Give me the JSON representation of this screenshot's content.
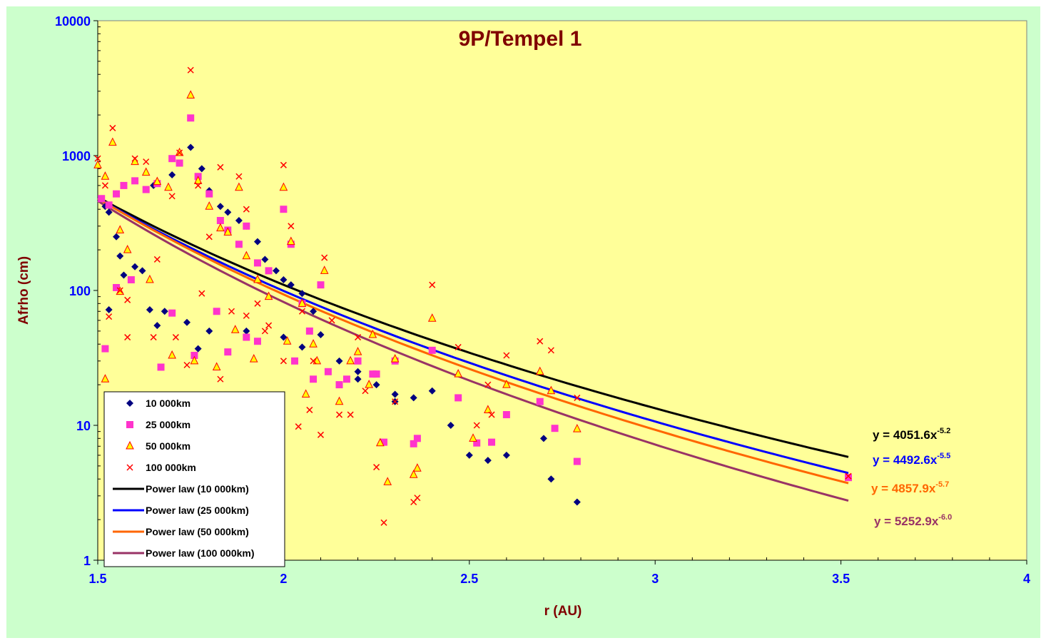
{
  "chart_data": {
    "type": "scatter",
    "title": "9P/Tempel 1",
    "xlabel": "r (AU)",
    "ylabel": "Afrho (cm)",
    "xlim": [
      1.5,
      4
    ],
    "ylim": [
      1,
      10000
    ],
    "yscale": "log",
    "xticks": [
      1.5,
      2,
      2.5,
      3,
      3.5,
      4
    ],
    "xtick_labels": [
      "1.5",
      "2",
      "2.5",
      "3",
      "3.5",
      "4"
    ],
    "yticks": [
      1,
      10,
      100,
      1000,
      10000
    ],
    "ytick_labels": [
      "1",
      "10",
      "100",
      "1000",
      "10000"
    ],
    "grid": false,
    "legend_position": "bottom-left",
    "colors": {
      "plot_bg": "#ffff99",
      "figure_bg": "#ccffcc",
      "title": "#800000",
      "axis_label": "#800000",
      "tick_label": "#0000ff"
    },
    "series": [
      {
        "name": "10 000km",
        "marker": "diamond",
        "color": "#000080",
        "points": [
          [
            1.52,
            420
          ],
          [
            1.53,
            380
          ],
          [
            1.55,
            250
          ],
          [
            1.56,
            180
          ],
          [
            1.57,
            130
          ],
          [
            1.6,
            150
          ],
          [
            1.62,
            140
          ],
          [
            1.65,
            600
          ],
          [
            1.7,
            720
          ],
          [
            1.72,
            880
          ],
          [
            1.75,
            1150
          ],
          [
            1.78,
            800
          ],
          [
            1.8,
            550
          ],
          [
            1.83,
            420
          ],
          [
            1.85,
            380
          ],
          [
            1.88,
            330
          ],
          [
            1.9,
            300
          ],
          [
            1.93,
            230
          ],
          [
            1.95,
            170
          ],
          [
            1.98,
            140
          ],
          [
            2.0,
            120
          ],
          [
            2.02,
            110
          ],
          [
            2.05,
            95
          ],
          [
            2.08,
            70
          ],
          [
            2.1,
            47
          ],
          [
            2.15,
            30
          ],
          [
            2.2,
            22
          ],
          [
            2.25,
            20
          ],
          [
            2.3,
            17
          ],
          [
            2.35,
            16
          ],
          [
            2.4,
            18
          ],
          [
            2.45,
            10
          ],
          [
            2.5,
            6
          ],
          [
            2.55,
            5.5
          ],
          [
            2.6,
            6
          ],
          [
            2.7,
            8
          ],
          [
            2.72,
            4
          ],
          [
            2.79,
            2.7
          ],
          [
            1.53,
            72
          ],
          [
            1.66,
            55
          ],
          [
            1.74,
            58
          ],
          [
            1.77,
            37
          ],
          [
            1.8,
            50
          ],
          [
            1.9,
            50
          ],
          [
            2.0,
            45
          ],
          [
            2.05,
            38
          ],
          [
            1.64,
            72
          ],
          [
            1.68,
            70
          ],
          [
            2.2,
            25
          ],
          [
            2.3,
            15
          ]
        ]
      },
      {
        "name": "25 000km",
        "marker": "square",
        "color": "#ff33cc",
        "points": [
          [
            1.51,
            480
          ],
          [
            1.53,
            430
          ],
          [
            1.55,
            520
          ],
          [
            1.57,
            600
          ],
          [
            1.6,
            650
          ],
          [
            1.63,
            560
          ],
          [
            1.66,
            620
          ],
          [
            1.7,
            950
          ],
          [
            1.72,
            880
          ],
          [
            1.75,
            1900
          ],
          [
            1.77,
            700
          ],
          [
            1.8,
            520
          ],
          [
            1.83,
            330
          ],
          [
            1.85,
            280
          ],
          [
            1.88,
            220
          ],
          [
            1.9,
            300
          ],
          [
            1.93,
            160
          ],
          [
            1.96,
            140
          ],
          [
            2.0,
            400
          ],
          [
            2.02,
            220
          ],
          [
            2.05,
            80
          ],
          [
            2.07,
            50
          ],
          [
            2.1,
            110
          ],
          [
            2.15,
            20
          ],
          [
            2.2,
            30
          ],
          [
            2.25,
            24
          ],
          [
            2.27,
            7.5
          ],
          [
            2.3,
            30
          ],
          [
            2.35,
            7.3
          ],
          [
            2.36,
            8
          ],
          [
            2.4,
            36
          ],
          [
            2.47,
            16
          ],
          [
            2.52,
            7.4
          ],
          [
            2.56,
            7.5
          ],
          [
            2.6,
            12
          ],
          [
            2.69,
            15
          ],
          [
            2.73,
            9.5
          ],
          [
            2.79,
            5.4
          ],
          [
            3.52,
            4.1
          ],
          [
            1.52,
            37
          ],
          [
            1.55,
            105
          ],
          [
            1.59,
            120
          ],
          [
            1.67,
            27
          ],
          [
            1.7,
            68
          ],
          [
            1.76,
            33
          ],
          [
            1.82,
            70
          ],
          [
            1.85,
            35
          ],
          [
            1.9,
            45
          ],
          [
            1.93,
            42
          ],
          [
            2.03,
            30
          ],
          [
            2.08,
            22
          ],
          [
            2.12,
            25
          ],
          [
            2.17,
            22
          ],
          [
            2.24,
            24
          ]
        ]
      },
      {
        "name": "50 000km",
        "marker": "triangle",
        "color": "#ff0000",
        "fill": "#ffff00",
        "points": [
          [
            1.5,
            850
          ],
          [
            1.52,
            700
          ],
          [
            1.54,
            1250
          ],
          [
            1.56,
            280
          ],
          [
            1.58,
            200
          ],
          [
            1.6,
            900
          ],
          [
            1.63,
            750
          ],
          [
            1.66,
            640
          ],
          [
            1.69,
            580
          ],
          [
            1.72,
            1050
          ],
          [
            1.75,
            2800
          ],
          [
            1.77,
            650
          ],
          [
            1.8,
            420
          ],
          [
            1.83,
            290
          ],
          [
            1.85,
            270
          ],
          [
            1.88,
            580
          ],
          [
            1.9,
            180
          ],
          [
            1.93,
            120
          ],
          [
            1.96,
            90
          ],
          [
            2.0,
            580
          ],
          [
            2.02,
            230
          ],
          [
            2.05,
            80
          ],
          [
            2.08,
            40
          ],
          [
            2.11,
            140
          ],
          [
            2.15,
            15
          ],
          [
            2.2,
            35
          ],
          [
            2.24,
            47
          ],
          [
            2.26,
            7.4
          ],
          [
            2.28,
            3.8
          ],
          [
            2.3,
            31
          ],
          [
            2.35,
            4.3
          ],
          [
            2.36,
            4.8
          ],
          [
            2.4,
            62
          ],
          [
            2.47,
            24
          ],
          [
            2.51,
            8
          ],
          [
            2.55,
            13
          ],
          [
            2.6,
            20
          ],
          [
            2.69,
            25
          ],
          [
            2.72,
            18
          ],
          [
            2.79,
            9.4
          ],
          [
            1.52,
            22
          ],
          [
            1.56,
            98
          ],
          [
            1.64,
            120
          ],
          [
            1.7,
            33
          ],
          [
            1.76,
            30
          ],
          [
            1.82,
            27
          ],
          [
            1.87,
            51
          ],
          [
            1.92,
            31
          ],
          [
            2.01,
            42
          ],
          [
            2.06,
            17
          ],
          [
            2.09,
            30
          ],
          [
            2.18,
            30
          ],
          [
            2.23,
            20
          ]
        ]
      },
      {
        "name": "100 000km",
        "marker": "x",
        "color": "#ff0000",
        "points": [
          [
            1.5,
            950
          ],
          [
            1.52,
            600
          ],
          [
            1.54,
            1600
          ],
          [
            1.56,
            100
          ],
          [
            1.58,
            85
          ],
          [
            1.6,
            950
          ],
          [
            1.63,
            900
          ],
          [
            1.66,
            170
          ],
          [
            1.7,
            500
          ],
          [
            1.72,
            1050
          ],
          [
            1.75,
            4300
          ],
          [
            1.77,
            600
          ],
          [
            1.8,
            250
          ],
          [
            1.83,
            820
          ],
          [
            1.86,
            70
          ],
          [
            1.88,
            700
          ],
          [
            1.9,
            400
          ],
          [
            1.93,
            80
          ],
          [
            1.96,
            55
          ],
          [
            2.0,
            850
          ],
          [
            2.02,
            300
          ],
          [
            2.05,
            70
          ],
          [
            2.08,
            30
          ],
          [
            2.11,
            175
          ],
          [
            2.15,
            12
          ],
          [
            2.2,
            45
          ],
          [
            2.25,
            4.9
          ],
          [
            2.27,
            1.9
          ],
          [
            2.3,
            15
          ],
          [
            2.35,
            2.7
          ],
          [
            2.36,
            2.9
          ],
          [
            2.4,
            110
          ],
          [
            2.47,
            38
          ],
          [
            2.52,
            10
          ],
          [
            2.55,
            20
          ],
          [
            2.56,
            12
          ],
          [
            2.6,
            33
          ],
          [
            2.69,
            42
          ],
          [
            2.72,
            36
          ],
          [
            2.79,
            16
          ],
          [
            3.52,
            4.2
          ],
          [
            1.53,
            64
          ],
          [
            1.58,
            45
          ],
          [
            1.65,
            45
          ],
          [
            1.71,
            45
          ],
          [
            1.74,
            28
          ],
          [
            1.78,
            95
          ],
          [
            1.83,
            22
          ],
          [
            1.9,
            65
          ],
          [
            1.95,
            50
          ],
          [
            2.0,
            30
          ],
          [
            2.04,
            9.8
          ],
          [
            2.07,
            13
          ],
          [
            2.1,
            8.5
          ],
          [
            2.13,
            60
          ],
          [
            2.18,
            12
          ],
          [
            2.22,
            18
          ]
        ]
      }
    ],
    "trendlines": [
      {
        "name": "Power law (10 000km)",
        "type": "power",
        "a": 4051.6,
        "b": -5.2,
        "color": "#000000",
        "x_range": [
          1.5,
          3.52
        ],
        "equation": "y = 4051.6x",
        "exponent": "-5.2"
      },
      {
        "name": "Power law (25 000km)",
        "type": "power",
        "a": 4492.6,
        "b": -5.5,
        "color": "#0000ff",
        "x_range": [
          1.5,
          3.52
        ],
        "equation": "y = 4492.6x",
        "exponent": "-5.5"
      },
      {
        "name": "Power law (50 000km)",
        "type": "power",
        "a": 4857.9,
        "b": -5.7,
        "color": "#ff6600",
        "x_range": [
          1.5,
          3.52
        ],
        "equation": "y = 4857.9x",
        "exponent": "-5.7"
      },
      {
        "name": "Power law (100 000km)",
        "type": "power",
        "a": 5252.9,
        "b": -6.0,
        "color": "#993366",
        "x_range": [
          1.5,
          3.52
        ],
        "equation": "y = 5252.9x",
        "exponent": "-6.0"
      }
    ]
  }
}
